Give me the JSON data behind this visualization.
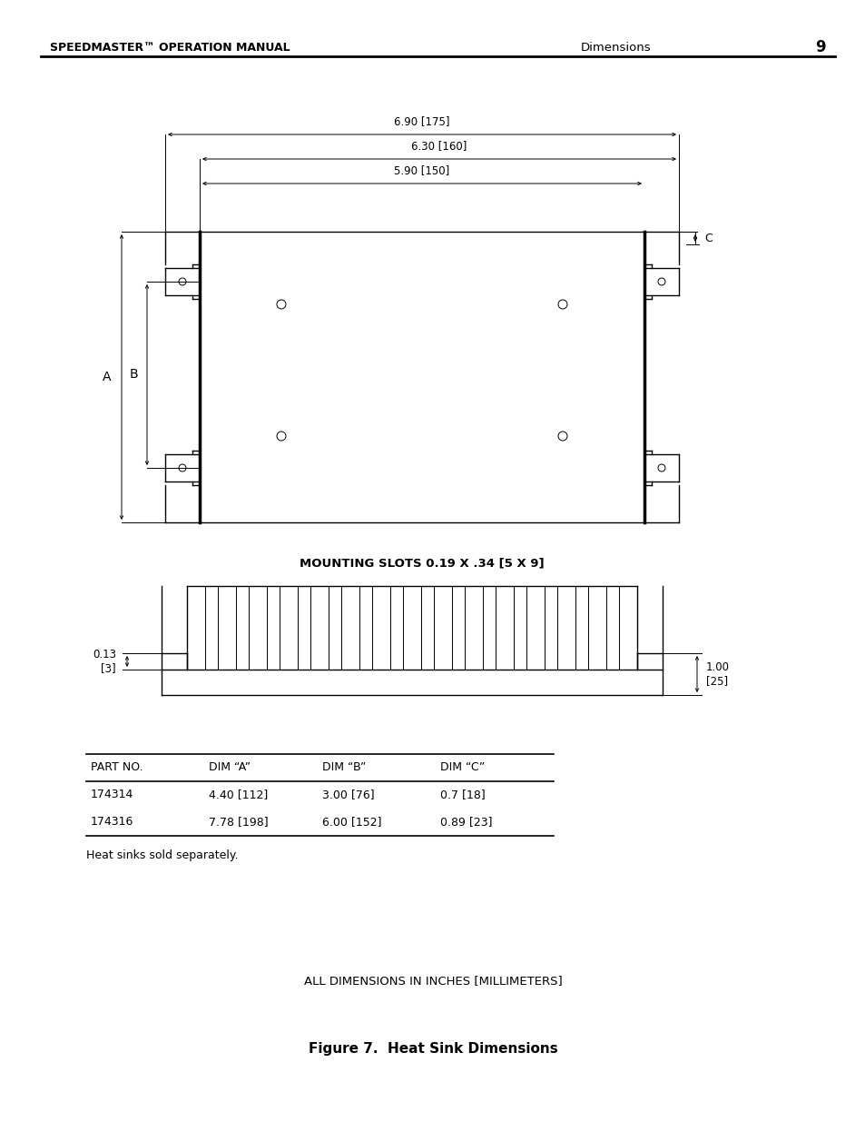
{
  "header_left": "SPEEDMASTER™ OPERATION MANUAL",
  "header_right": "Dimensions",
  "header_page": "9",
  "bg_color": "#ffffff",
  "line_color": "#000000",
  "table_headers": [
    "PART NO.",
    "DIM “A”",
    "DIM “B”",
    "DIM “C”"
  ],
  "table_rows": [
    [
      "174314",
      "4.40 [112]",
      "3.00 [76]",
      "0.7 [18]"
    ],
    [
      "174316",
      "7.78 [198]",
      "6.00 [152]",
      "0.89 [23]"
    ]
  ],
  "table_note": "Heat sinks sold separately.",
  "dim_note": "ALL DIMENSIONS IN INCHES [MILLIMETERS]",
  "figure_caption": "Figure 7.  Heat Sink Dimensions",
  "mounting_slots_label": "MOUNTING SLOTS 0.19 X .34 [5 X 9]"
}
